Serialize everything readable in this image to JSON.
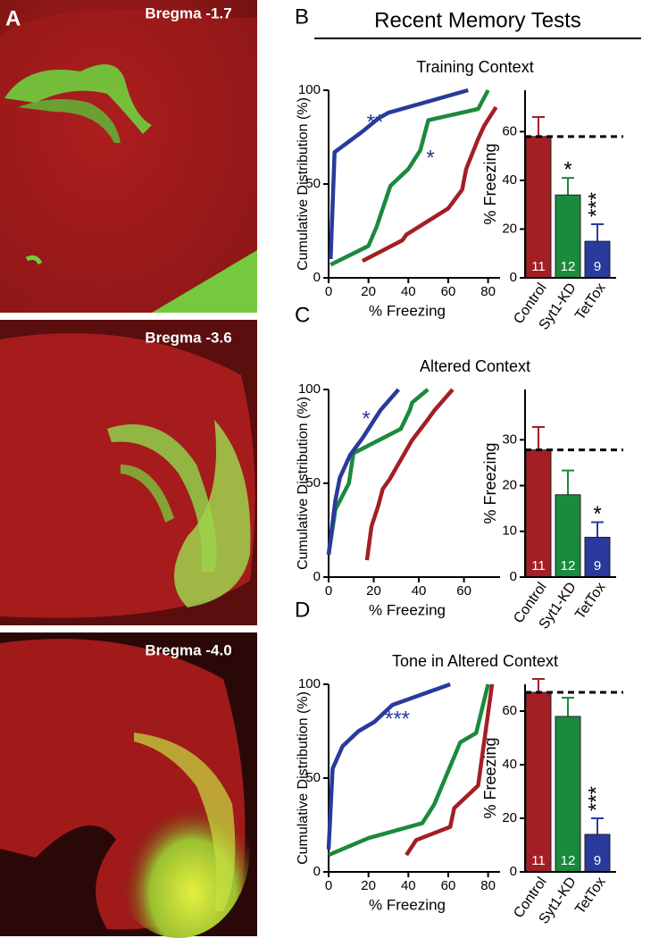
{
  "panel_a": {
    "label": "A",
    "sections": [
      "Bregma -1.7",
      "Bregma -3.6",
      "Bregma -4.0"
    ]
  },
  "header": {
    "title": "Recent Memory Tests"
  },
  "panels": [
    {
      "label": "B",
      "title": "Training Context"
    },
    {
      "label": "C",
      "title": "Altered Context"
    },
    {
      "label": "D",
      "title": "Tone in Altered Context"
    }
  ],
  "chart_data": [
    {
      "type": "line",
      "x_label": "% Freezing",
      "y_label": "Cumulative Distribution (%)",
      "xlim": [
        0,
        86
      ],
      "ylim": [
        0,
        100
      ],
      "xticks": [
        0,
        20,
        40,
        60,
        80
      ],
      "yticks": [
        0,
        50,
        100
      ],
      "series": [
        {
          "color": "#a31f24",
          "x": [
            17,
            37,
            39,
            60,
            67,
            69,
            75,
            78,
            84
          ],
          "values": [
            9,
            20,
            23,
            37,
            47,
            58,
            74,
            81,
            91
          ]
        },
        {
          "color": "#1a8a3c",
          "x": [
            1,
            20,
            24,
            31,
            40,
            46,
            50,
            75,
            80
          ],
          "values": [
            7,
            17,
            27,
            49,
            58,
            68,
            84,
            90,
            100
          ]
        },
        {
          "color": "#2a3a9c",
          "x": [
            1,
            3,
            17,
            25,
            30,
            70
          ],
          "values": [
            10,
            67,
            78,
            85,
            88,
            100
          ]
        }
      ],
      "annotations": [
        {
          "text": "**",
          "color": "#2a3a9c"
        },
        {
          "text": "*",
          "color": "#2a3a9c"
        }
      ]
    },
    {
      "type": "bar",
      "y_label": "% Freezing",
      "categories": [
        "Control",
        "Syt1-KD",
        "TetTox"
      ],
      "colors": [
        "#a31f24",
        "#1a8a3c",
        "#2a3a9c"
      ],
      "values": [
        58,
        34,
        15
      ],
      "errors": [
        8,
        7,
        7
      ],
      "n": [
        11,
        12,
        9
      ],
      "annotations": [
        null,
        "*",
        "***"
      ],
      "ylim": [
        0,
        77
      ],
      "yticks": [
        0,
        20,
        40,
        60
      ],
      "reference_line": true
    },
    {
      "type": "line",
      "x_label": "% Freezing",
      "y_label": "Cumulative Distribution (%)",
      "xlim": [
        0,
        76
      ],
      "ylim": [
        0,
        100
      ],
      "xticks": [
        0,
        20,
        40,
        60
      ],
      "yticks": [
        0,
        50,
        100
      ],
      "series": [
        {
          "color": "#a31f24",
          "x": [
            17,
            19,
            22,
            24,
            27,
            37,
            44,
            47,
            55
          ],
          "values": [
            9,
            27,
            38,
            47,
            52,
            73,
            84,
            89,
            100
          ]
        },
        {
          "color": "#1a8a3c",
          "x": [
            0,
            3,
            9,
            11,
            32,
            36,
            37,
            44
          ],
          "values": [
            12,
            36,
            50,
            66,
            79,
            89,
            93,
            100
          ]
        },
        {
          "color": "#2a3a9c",
          "x": [
            0,
            3,
            5,
            9.5,
            15,
            23,
            31
          ],
          "values": [
            12,
            41,
            53,
            65,
            74,
            89,
            100
          ]
        }
      ],
      "annotations": [
        {
          "text": "*",
          "color": "#2a3a9c"
        }
      ]
    },
    {
      "type": "bar",
      "y_label": "% Freezing",
      "categories": [
        "Control",
        "Syt1-KD",
        "TetTox"
      ],
      "colors": [
        "#a31f24",
        "#1a8a3c",
        "#2a3a9c"
      ],
      "values": [
        27.8,
        18,
        8.7
      ],
      "errors": [
        5,
        5.3,
        3.3
      ],
      "n": [
        11,
        12,
        9
      ],
      "annotations": [
        null,
        null,
        "*"
      ],
      "ylim": [
        0,
        41
      ],
      "yticks": [
        0,
        10,
        20,
        30
      ],
      "reference_line": true
    },
    {
      "type": "line",
      "x_label": "% Freezing",
      "y_label": "Cumulative Distribution (%)",
      "xlim": [
        0,
        86
      ],
      "ylim": [
        0,
        100
      ],
      "xticks": [
        0,
        20,
        40,
        60,
        80
      ],
      "yticks": [
        0,
        50,
        100
      ],
      "series": [
        {
          "color": "#a31f24",
          "x": [
            39,
            44,
            61,
            63,
            75,
            82
          ],
          "values": [
            9,
            17,
            24,
            34,
            46,
            100
          ]
        },
        {
          "color": "#1a8a3c",
          "x": [
            0,
            20,
            47,
            53,
            66,
            74,
            80
          ],
          "values": [
            9,
            18,
            26,
            36,
            69,
            74,
            100
          ]
        },
        {
          "color": "#2a3a9c",
          "x": [
            0,
            2,
            7,
            15,
            23,
            32,
            61
          ],
          "values": [
            12,
            55,
            67,
            75,
            80,
            89,
            100
          ]
        }
      ],
      "annotations": [
        {
          "text": "***",
          "color": "#2a3a9c"
        }
      ]
    },
    {
      "type": "bar",
      "y_label": "% Freezing",
      "categories": [
        "Control",
        "Syt1-KD",
        "TetTox"
      ],
      "colors": [
        "#a31f24",
        "#1a8a3c",
        "#2a3a9c"
      ],
      "values": [
        67,
        58,
        14
      ],
      "errors": [
        5,
        7,
        6
      ],
      "n": [
        11,
        12,
        9
      ],
      "annotations": [
        null,
        null,
        "***"
      ],
      "ylim": [
        0,
        70
      ],
      "yticks": [
        0,
        20,
        40,
        60
      ],
      "reference_line": true
    }
  ]
}
